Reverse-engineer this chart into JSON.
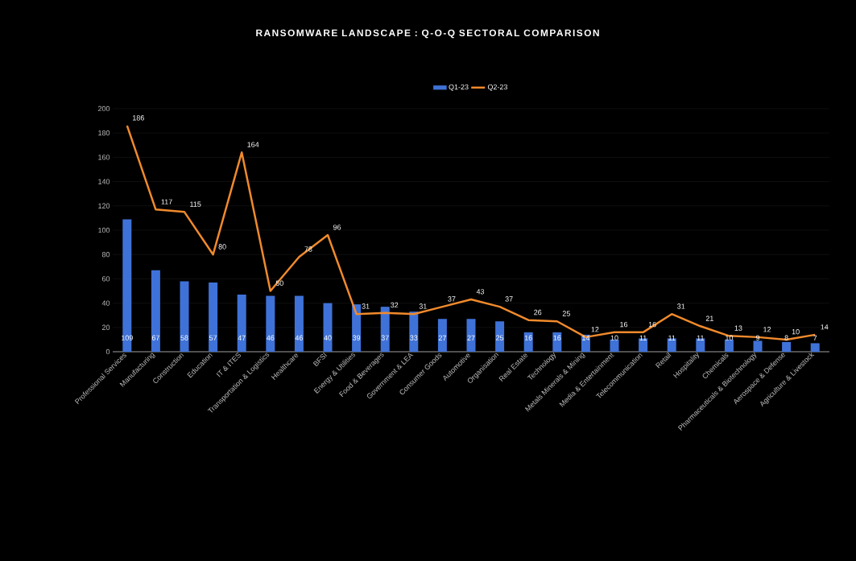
{
  "chart_data": {
    "type": "bar",
    "title": "RANSOMWARE LANDSCAPE : Q-O-Q SECTORAL COMPARISON",
    "categories": [
      "Professional Services",
      "Manufacturing",
      "Construction",
      "Education",
      "IT & ITES",
      "Transportation & Logistics",
      "Healthcare",
      "BFSI",
      "Energy & Utilities",
      "Food & Beverages",
      "Government & LEA",
      "Consumer Goods",
      "Automotive",
      "Organisation",
      "Real Estate",
      "Technology",
      "Metals Minerals & Mining",
      "Media & Entertainment",
      "Telecommunication",
      "Retail",
      "Hospitality",
      "Chemicals",
      "Pharmaceuticals & Biotechnology",
      "Aerospace & Defense",
      "Agriculture & Livestock"
    ],
    "series": [
      {
        "name": "Q1-23",
        "color": "#3f72d8",
        "values": [
          109,
          67,
          58,
          57,
          47,
          46,
          46,
          40,
          39,
          37,
          33,
          27,
          27,
          25,
          16,
          16,
          14,
          10,
          11,
          11,
          11,
          10,
          9,
          8,
          7
        ]
      },
      {
        "name": "Q2-23",
        "type": "line",
        "color": "#f08a2c",
        "values": [
          186,
          117,
          115,
          80,
          164,
          50,
          78,
          96,
          31,
          32,
          31,
          37,
          43,
          37,
          26,
          25,
          12,
          16,
          16,
          31,
          21,
          13,
          12,
          10,
          14
        ]
      }
    ],
    "ylim": [
      0,
      200
    ],
    "yticks": [
      0,
      20,
      40,
      60,
      80,
      100,
      120,
      140,
      160,
      180,
      200
    ],
    "grid": "y",
    "legend": "top",
    "data_labels": true
  }
}
